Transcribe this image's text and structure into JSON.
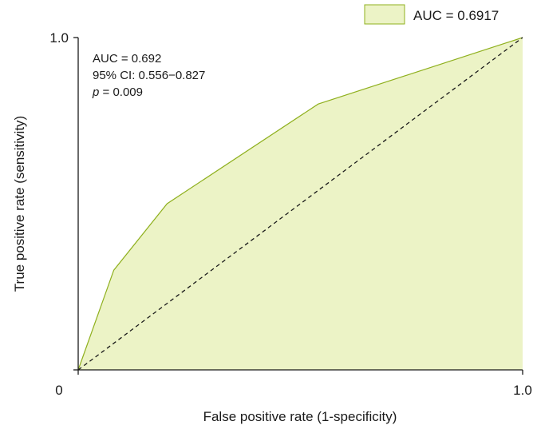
{
  "chart_data": {
    "type": "area",
    "title": "",
    "xlabel": "False positive rate (1-specificity)",
    "ylabel": "True positive rate (sensitivity)",
    "xlim": [
      0,
      1
    ],
    "ylim": [
      0,
      1
    ],
    "x_ticks": [
      "0",
      "1.0"
    ],
    "y_ticks": [
      "1.0"
    ],
    "grid": false,
    "legend_position": "top-right",
    "series": [
      {
        "name": "AUC = 0.6917",
        "x": [
          0,
          0.08,
          0.2,
          0.54,
          1.0
        ],
        "y": [
          0,
          0.3,
          0.5,
          0.8,
          1.0
        ],
        "fill": "#ecf3c6",
        "stroke": "#8fb01e"
      }
    ],
    "reference_line": {
      "x": [
        0,
        1
      ],
      "y": [
        0,
        1
      ],
      "style": "dashed",
      "color": "#1a1a1a"
    },
    "annotations": {
      "auc": "AUC = 0.692",
      "ci": "95% CI: 0.556−0.827",
      "p_symbol": "p",
      "p_value": " = 0.009"
    }
  }
}
